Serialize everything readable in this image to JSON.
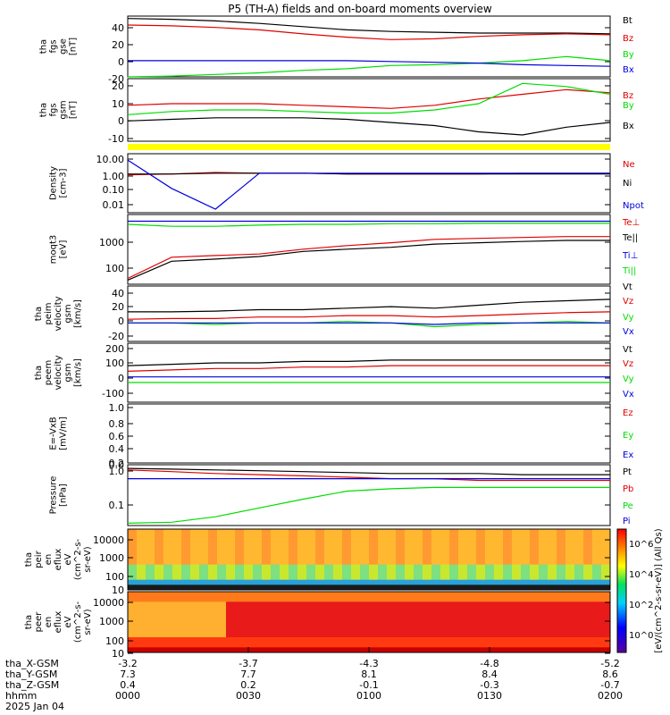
{
  "title": "P5 (TH-A) fields and on-board moments overview",
  "colors": {
    "black": "#000000",
    "red": "#e00000",
    "green": "#00dd00",
    "blue": "#0000dd",
    "yellow": "#ffff00"
  },
  "chart_data": [
    {
      "id": "p1",
      "type": "line",
      "ylabel": [
        "tha",
        "fgs",
        "gse",
        "[nT]"
      ],
      "ylim": [
        -20,
        55
      ],
      "yticks": [
        "40",
        "20",
        "0",
        "-20"
      ],
      "series": [
        {
          "name": "Bt",
          "color": "#000000",
          "values": [
            52,
            51,
            49,
            46,
            42,
            38,
            36,
            35,
            34,
            34,
            34,
            33
          ]
        },
        {
          "name": "Bz",
          "color": "#e00000",
          "values": [
            44,
            43,
            41,
            38,
            33,
            29,
            26,
            27,
            30,
            32,
            33,
            32
          ]
        },
        {
          "name": "By",
          "color": "#00dd00",
          "values": [
            -20,
            -19,
            -17,
            -15,
            -12,
            -10,
            -6,
            -5,
            -3,
            0,
            5,
            0
          ]
        },
        {
          "name": "Bx",
          "color": "#0000dd",
          "values": [
            0,
            0,
            0,
            0,
            0,
            0,
            -1,
            -2,
            -3,
            -5,
            -6,
            -7
          ]
        }
      ]
    },
    {
      "id": "p2",
      "type": "line",
      "ylabel": [
        "tha",
        "fgs",
        "gsm",
        "[nT]"
      ],
      "ylim": [
        -15,
        25
      ],
      "yticks": [
        "20",
        "10",
        "0",
        "-10"
      ],
      "series": [
        {
          "name": "Bz",
          "color": "#e00000",
          "values": [
            8,
            9,
            9,
            9,
            8,
            7,
            6,
            8,
            12,
            15,
            18,
            16
          ]
        },
        {
          "name": "By",
          "color": "#00dd00",
          "values": [
            2,
            4,
            5,
            5,
            4,
            3,
            3,
            5,
            9,
            22,
            20,
            15
          ]
        },
        {
          "name": "Bx",
          "color": "#000000",
          "values": [
            -2,
            -1,
            0,
            0,
            0,
            -1,
            -3,
            -5,
            -9,
            -11,
            -6,
            -3
          ]
        }
      ]
    },
    {
      "id": "p3",
      "type": "line",
      "ylabel": [
        "Density",
        "[cm-3]"
      ],
      "ylim": [
        0.003,
        15
      ],
      "yticks": [
        "10.00",
        "1.00",
        "0.10",
        "0.01"
      ],
      "series": [
        {
          "name": "Ne",
          "color": "#e00000",
          "values": [
            0.7,
            0.8,
            1,
            0.9,
            0.9,
            0.8,
            0.8,
            0.8,
            0.8,
            0.9,
            0.9,
            0.9
          ]
        },
        {
          "name": "Ni",
          "color": "#000000",
          "values": [
            0.8,
            0.8,
            0.9,
            0.9,
            0.9,
            0.8,
            0.8,
            0.8,
            0.8,
            0.8,
            0.8,
            0.8
          ]
        },
        {
          "name": "Npot",
          "color": "#0000dd",
          "values": [
            6,
            0.1,
            0.005,
            0.9,
            0.9,
            0.9,
            0.9,
            0.9,
            0.9,
            0.9,
            0.9,
            0.9
          ]
        }
      ]
    },
    {
      "id": "p4",
      "type": "line",
      "ylabel": [
        "moqt3",
        "[eV]"
      ],
      "ylim": [
        60,
        8000
      ],
      "yticks": [
        "1000",
        "100"
      ],
      "series": [
        {
          "name": "Te⊥",
          "color": "#e00000",
          "values": [
            90,
            400,
            450,
            500,
            700,
            900,
            1100,
            1400,
            1500,
            1600,
            1700,
            1700
          ]
        },
        {
          "name": "Te||",
          "color": "#000000",
          "values": [
            80,
            300,
            350,
            420,
            600,
            700,
            800,
            1000,
            1100,
            1200,
            1300,
            1300
          ]
        },
        {
          "name": "Ti⊥",
          "color": "#0000dd",
          "values": [
            5000,
            5000,
            5000,
            5000,
            5000,
            5000,
            5000,
            5000,
            5000,
            5000,
            5000,
            5000
          ]
        },
        {
          "name": "Ti||",
          "color": "#00dd00",
          "values": [
            4000,
            3500,
            3500,
            3800,
            4000,
            4000,
            4200,
            4200,
            4300,
            4300,
            4300,
            4300
          ]
        }
      ]
    },
    {
      "id": "p5",
      "type": "line",
      "ylabel": [
        "tha",
        "peim",
        "velocity",
        "gsm",
        "[km/s]"
      ],
      "ylim": [
        -25,
        50
      ],
      "yticks": [
        "40",
        "20",
        "0",
        "-20"
      ],
      "series": [
        {
          "name": "Vt",
          "color": "#000000",
          "values": [
            15,
            15,
            16,
            18,
            18,
            20,
            22,
            20,
            24,
            28,
            30,
            32
          ]
        },
        {
          "name": "Vz",
          "color": "#e00000",
          "values": [
            5,
            6,
            6,
            8,
            8,
            10,
            10,
            8,
            10,
            12,
            14,
            15
          ]
        },
        {
          "name": "Vy",
          "color": "#00dd00",
          "values": [
            0,
            0,
            -2,
            0,
            0,
            2,
            0,
            -5,
            -2,
            0,
            2,
            0
          ]
        },
        {
          "name": "Vx",
          "color": "#0000dd",
          "values": [
            0,
            0,
            0,
            0,
            0,
            0,
            0,
            -2,
            0,
            0,
            0,
            0
          ]
        }
      ]
    },
    {
      "id": "p6",
      "type": "line",
      "ylabel": [
        "tha",
        "peem",
        "velocity",
        "gsm",
        "[km/s]"
      ],
      "ylim": [
        -200,
        220
      ],
      "yticks": [
        "200",
        "100",
        "0",
        "-100"
      ],
      "series": [
        {
          "name": "Vt",
          "color": "#000000",
          "values": [
            60,
            70,
            80,
            80,
            90,
            90,
            100,
            100,
            100,
            100,
            100,
            100
          ]
        },
        {
          "name": "Vz",
          "color": "#e00000",
          "values": [
            20,
            30,
            40,
            40,
            50,
            50,
            60,
            60,
            60,
            60,
            60,
            60
          ]
        },
        {
          "name": "Vy",
          "color": "#00dd00",
          "values": [
            -60,
            -60,
            -60,
            -60,
            -60,
            -60,
            -60,
            -60,
            -60,
            -60,
            -60,
            -60
          ]
        },
        {
          "name": "Vx",
          "color": "#0000dd",
          "values": [
            -20,
            -20,
            -20,
            -20,
            -20,
            -20,
            -20,
            -20,
            -20,
            -20,
            -20,
            -20
          ]
        }
      ]
    },
    {
      "id": "p7",
      "type": "line",
      "ylabel": [
        "E=-VxB",
        "[mV/m]"
      ],
      "ylim": [
        0,
        1
      ],
      "yticks": [
        "1.0",
        "0.8",
        "0.6",
        "0.4",
        "0.2",
        "0.0"
      ],
      "series": [
        {
          "name": "Ez",
          "color": "#e00000",
          "values": []
        },
        {
          "name": "Ey",
          "color": "#00dd00",
          "values": []
        },
        {
          "name": "Ex",
          "color": "#0000dd",
          "values": []
        }
      ]
    },
    {
      "id": "p8",
      "type": "line",
      "ylabel": [
        "Pressure",
        "[nPa]"
      ],
      "ylim": [
        0.01,
        1.2
      ],
      "yticks": [
        "1.0",
        "0.1"
      ],
      "series": [
        {
          "name": "Pt",
          "color": "#000000",
          "values": [
            0.9,
            0.85,
            0.8,
            0.75,
            0.7,
            0.65,
            0.6,
            0.6,
            0.6,
            0.55,
            0.55,
            0.55
          ]
        },
        {
          "name": "Pb",
          "color": "#e00000",
          "values": [
            0.8,
            0.7,
            0.6,
            0.55,
            0.5,
            0.45,
            0.4,
            0.4,
            0.35,
            0.35,
            0.35,
            0.35
          ]
        },
        {
          "name": "Pe",
          "color": "#00dd00",
          "values": [
            0.012,
            0.013,
            0.02,
            0.04,
            0.08,
            0.15,
            0.18,
            0.2,
            0.2,
            0.2,
            0.2,
            0.2
          ]
        },
        {
          "name": "Pi",
          "color": "#0000dd",
          "values": [
            0.4,
            0.4,
            0.4,
            0.4,
            0.4,
            0.4,
            0.4,
            0.4,
            0.4,
            0.4,
            0.4,
            0.4
          ]
        }
      ]
    },
    {
      "id": "p9",
      "type": "heatmap",
      "ylabel": [
        "tha",
        "peir",
        "en",
        "eflux",
        "eV",
        "(cm^2-s-",
        "sr-eV)"
      ],
      "yticks": [
        "10000",
        "1000",
        "100",
        "10"
      ]
    },
    {
      "id": "p10",
      "type": "heatmap",
      "ylabel": [
        "tha",
        "peer",
        "en",
        "eflux",
        "eV",
        "(cm^2-s-",
        "sr-eV)"
      ],
      "yticks": [
        "10000",
        "1000",
        "100",
        "10"
      ]
    }
  ],
  "colorbar": {
    "label": "[eV/(cm^2-s-sr-eV)] (All Qs)",
    "ticks": [
      "10^6",
      "10^4",
      "10^2",
      "10^0"
    ]
  },
  "ephemeris": {
    "labels": [
      "tha_X-GSM",
      "tha_Y-GSM",
      "tha_Z-GSM",
      "hhmm",
      "2025 Jan 04"
    ],
    "x": [
      "-3.2",
      "-3.7",
      "-4.3",
      "-4.8",
      "-5.2"
    ],
    "y": [
      "7.3",
      "7.7",
      "8.1",
      "8.4",
      "8.6"
    ],
    "z": [
      "0.4",
      "0.2",
      "-0.1",
      "-0.3",
      "-0.7"
    ],
    "hhmm": [
      "0000",
      "0030",
      "0100",
      "0130",
      "0200"
    ]
  }
}
